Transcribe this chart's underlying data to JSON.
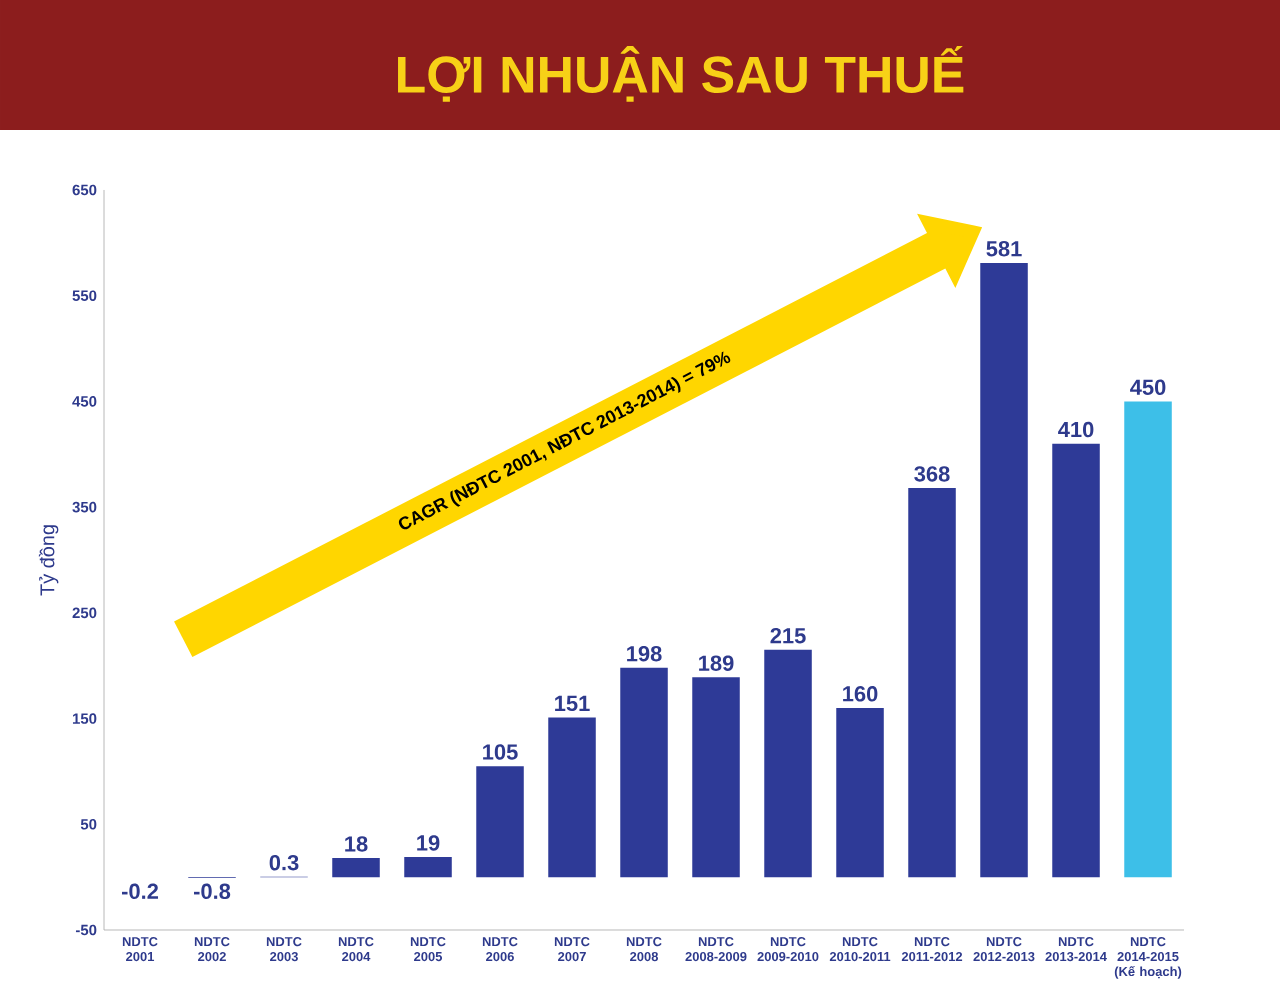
{
  "chart_data": {
    "type": "bar",
    "title": "LỢI NHUẬN SAU THUẾ",
    "ylabel": "Tỷ đồng",
    "categories": [
      "NDTC 2001",
      "NDTC 2002",
      "NDTC 2003",
      "NDTC 2004",
      "NDTC 2005",
      "NDTC 2006",
      "NDTC 2007",
      "NDTC 2008",
      "NDTC 2008-2009",
      "NDTC 2009-2010",
      "NDTC 2010-2011",
      "NDTC 2011-2012",
      "NDTC 2012-2013",
      "NDTC 2013-2014",
      "NDTC 2014-2015 (Kế hoạch)"
    ],
    "values": [
      -0.2,
      -0.8,
      0.3,
      18,
      19,
      105,
      151,
      198,
      189,
      215,
      160,
      368,
      581,
      410,
      450
    ],
    "value_labels": [
      "-0.2",
      "-0.8",
      "0.3",
      "18",
      "19",
      "105",
      "151",
      "198",
      "189",
      "215",
      "160",
      "368",
      "581",
      "410",
      "450"
    ],
    "colors": [
      "#2e3a97",
      "#2e3a97",
      "#2e3a97",
      "#2e3a97",
      "#2e3a97",
      "#2e3a97",
      "#2e3a97",
      "#2e3a97",
      "#2e3a97",
      "#2e3a97",
      "#2e3a97",
      "#2e3a97",
      "#2e3a97",
      "#2e3a97",
      "#3dbfe8"
    ],
    "ylim": [
      -50,
      650
    ],
    "yticks": [
      -50,
      50,
      150,
      250,
      350,
      450,
      550,
      650
    ],
    "grid": false,
    "annotations": [
      "CAGR (NĐTC 2001, NĐTC 2013-2014) = 79%"
    ]
  }
}
